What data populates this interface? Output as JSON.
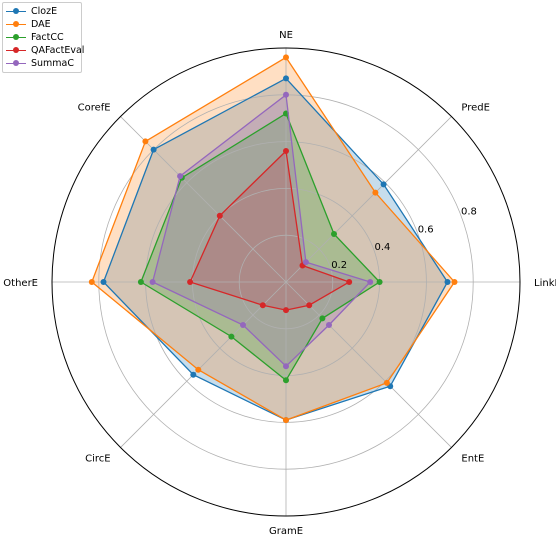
{
  "chart_data": {
    "type": "radar",
    "title": "",
    "axes": [
      "LinkE",
      "PredE",
      "NE",
      "CorefE",
      "OtherE",
      "CircE",
      "GramE",
      "EntE"
    ],
    "direction": "counterclockwise",
    "start_angle_deg": 0,
    "rlim": [
      0,
      1.0
    ],
    "radial_ticks": [
      0.2,
      0.4,
      0.6,
      0.8
    ],
    "radial_tick_labels": [
      "0.2",
      "0.4",
      "0.6",
      "0.8"
    ],
    "grid": true,
    "legend": "top-left",
    "series": [
      {
        "name": "ClozE",
        "color": "#1f77b4",
        "values": [
          0.69,
          0.59,
          0.87,
          0.8,
          0.78,
          0.56,
          0.59,
          0.63
        ]
      },
      {
        "name": "DAE",
        "color": "#ff7f0e",
        "values": [
          0.72,
          0.54,
          0.96,
          0.85,
          0.83,
          0.53,
          0.59,
          0.61
        ]
      },
      {
        "name": "FactCC",
        "color": "#2ca02c",
        "values": [
          0.4,
          0.29,
          0.72,
          0.63,
          0.62,
          0.33,
          0.42,
          0.22
        ]
      },
      {
        "name": "QAFactEval",
        "color": "#d62728",
        "values": [
          0.27,
          0.1,
          0.56,
          0.4,
          0.41,
          0.14,
          0.12,
          0.14
        ]
      },
      {
        "name": "SummaC",
        "color": "#9467bd",
        "values": [
          0.36,
          0.12,
          0.8,
          0.64,
          0.57,
          0.26,
          0.36,
          0.26
        ]
      }
    ]
  }
}
